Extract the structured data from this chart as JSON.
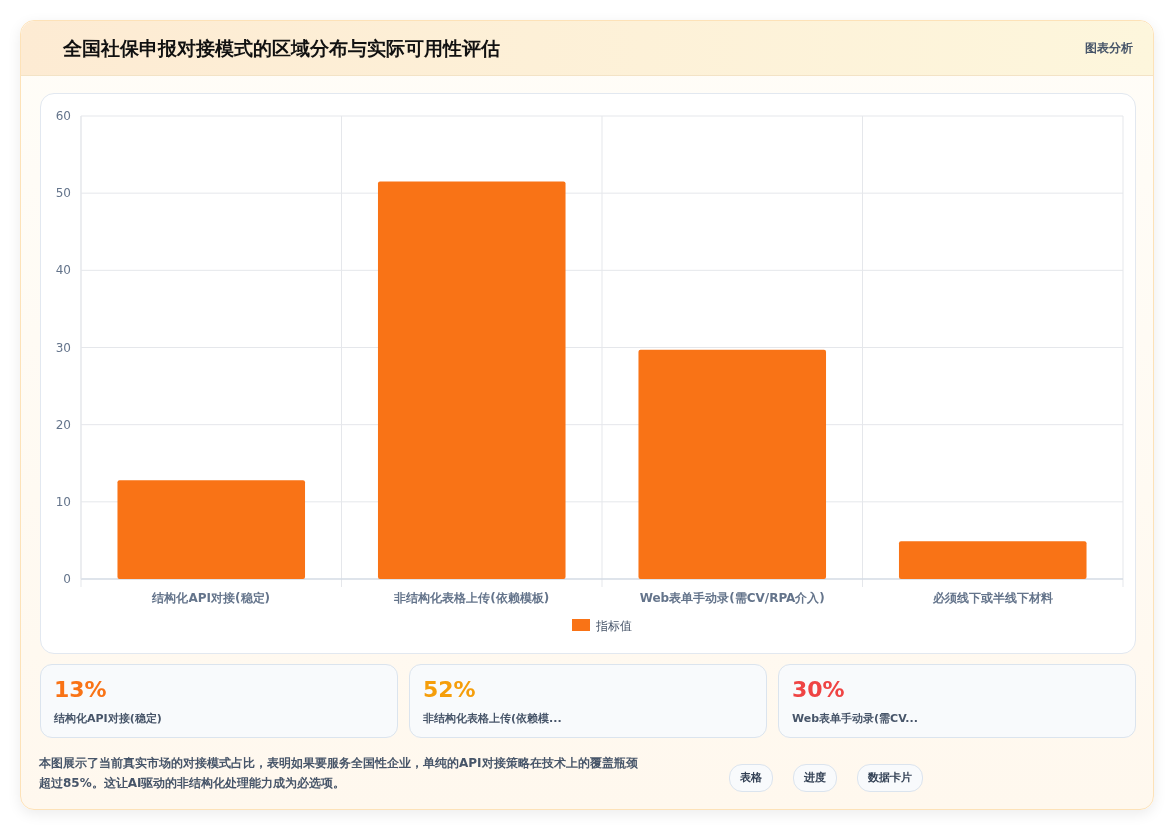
{
  "chart_data": [
    {
      "type": "bar",
      "title": "全国社保申报对接模式的区域分布与实际可用性评估",
      "categories": [
        "结构化API对接(稳定)",
        "非结构化表格上传(依赖模板)",
        "Web表单手动录(需CV/RPA介入)",
        "必须线下或半线下材料"
      ],
      "series": [
        {
          "name": "指标值",
          "color": "#f97316",
          "values": [
            12.8,
            51.5,
            29.7,
            4.9
          ]
        }
      ],
      "ylim": [
        0,
        60
      ],
      "yticks": [
        0,
        10,
        20,
        30,
        40,
        50,
        60
      ],
      "grid": true,
      "legend": "bottom",
      "annotations": [
        "图表分析",
        "本图展示了当前真实市场的对接模式占比，表明如果要服务全国性企业，单纯的API对接策略在技术上的覆盖瓶颈超过85%。这让AI驱动的非结构化处理能力成为必选项。",
        "表格",
        "进度",
        "数据卡片"
      ]
    },
    {
      "type": "other",
      "annotations": [
        "13%",
        "结构化API对接(稳定)",
        "52%",
        "非结构化表格上传(依赖模...",
        "30%",
        "Web表单手动录(需CV..."
      ]
    }
  ]
}
